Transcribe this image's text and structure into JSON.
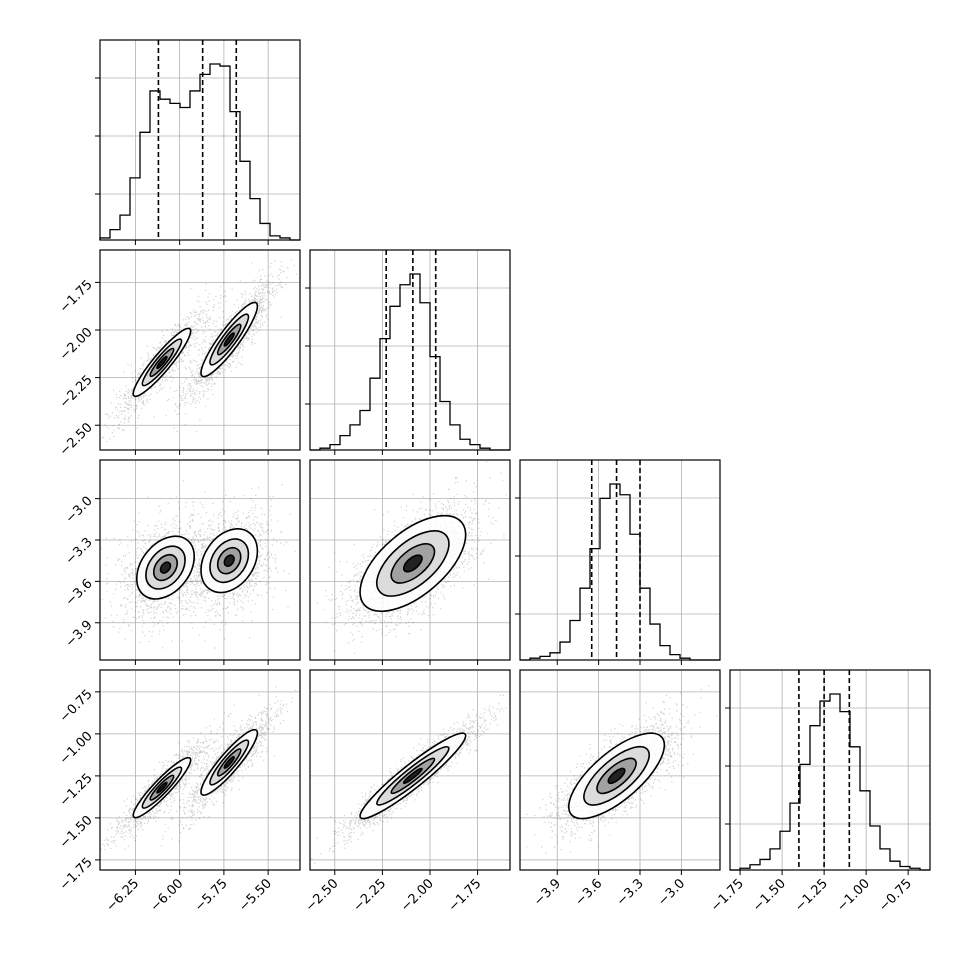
{
  "chart_data": {
    "type": "corner",
    "grid": true,
    "parameters": [
      {
        "range": [
          -6.45,
          -5.32
        ],
        "ticks": [
          -6.25,
          -6.0,
          -5.75,
          -5.5
        ],
        "tick_labels": [
          "−6.25",
          "−6.00",
          "−5.75",
          "−5.50"
        ],
        "quantiles": [
          -6.12,
          -5.87,
          -5.68
        ]
      },
      {
        "range": [
          -2.63,
          -1.58
        ],
        "ticks": [
          -2.5,
          -2.25,
          -2.0,
          -1.75
        ],
        "tick_labels": [
          "−2.50",
          "−2.25",
          "−2.00",
          "−1.75"
        ],
        "quantiles": [
          -2.23,
          -2.09,
          -1.97
        ]
      },
      {
        "range": [
          -4.17,
          -2.72
        ],
        "ticks": [
          -3.9,
          -3.6,
          -3.3,
          -3.0
        ],
        "tick_labels": [
          "−3.9",
          "−3.6",
          "−3.3",
          "−3.0"
        ],
        "quantiles": [
          -3.65,
          -3.47,
          -3.3
        ]
      },
      {
        "range": [
          -1.81,
          -0.62
        ],
        "ticks": [
          -1.75,
          -1.5,
          -1.25,
          -1.0,
          -0.75
        ],
        "tick_labels": [
          "−1.75",
          "−1.50",
          "−1.25",
          "−1.00",
          "−0.75"
        ],
        "quantiles": [
          -1.4,
          -1.25,
          -1.1
        ]
      }
    ],
    "histograms": [
      [
        1,
        5,
        12,
        30,
        52,
        72,
        68,
        66,
        64,
        72,
        80,
        85,
        84,
        62,
        38,
        20,
        8,
        2,
        1,
        0
      ],
      [
        0,
        1,
        3,
        8,
        14,
        22,
        40,
        62,
        80,
        92,
        98,
        82,
        52,
        27,
        14,
        6,
        3,
        1,
        0,
        0
      ],
      [
        0,
        1,
        2,
        4,
        10,
        22,
        40,
        62,
        90,
        98,
        92,
        70,
        40,
        20,
        8,
        3,
        1,
        0,
        0,
        0
      ],
      [
        0,
        1,
        3,
        6,
        12,
        22,
        38,
        60,
        82,
        96,
        100,
        90,
        70,
        45,
        25,
        12,
        5,
        2,
        1,
        0
      ]
    ],
    "pair_components": [
      {
        "pair": [
          1,
          0
        ],
        "components": [
          {
            "mean": [
              -6.1,
              -2.17
            ],
            "sd": [
              0.1,
              0.11
            ],
            "corr": 0.92,
            "weight": 0.45
          },
          {
            "mean": [
              -5.72,
              -2.05
            ],
            "sd": [
              0.09,
              0.11
            ],
            "corr": 0.9,
            "weight": 0.55
          }
        ]
      },
      {
        "pair": [
          2,
          0
        ],
        "components": [
          {
            "mean": [
              -6.08,
              -3.5
            ],
            "sd": [
              0.1,
              0.14
            ],
            "corr": 0.35,
            "weight": 0.45
          },
          {
            "mean": [
              -5.72,
              -3.45
            ],
            "sd": [
              0.09,
              0.13
            ],
            "corr": 0.3,
            "weight": 0.55
          }
        ]
      },
      {
        "pair": [
          2,
          1
        ],
        "components": [
          {
            "mean": [
              -2.09,
              -3.47
            ],
            "sd": [
              0.12,
              0.15
            ],
            "corr": 0.6,
            "weight": 1.0
          }
        ]
      },
      {
        "pair": [
          3,
          0
        ],
        "components": [
          {
            "mean": [
              -6.1,
              -1.32
            ],
            "sd": [
              0.1,
              0.11
            ],
            "corr": 0.92,
            "weight": 0.45
          },
          {
            "mean": [
              -5.72,
              -1.17
            ],
            "sd": [
              0.09,
              0.11
            ],
            "corr": 0.9,
            "weight": 0.55
          }
        ]
      },
      {
        "pair": [
          3,
          1
        ],
        "components": [
          {
            "mean": [
              -2.09,
              -1.25
            ],
            "sd": [
              0.12,
              0.11
            ],
            "corr": 0.94,
            "weight": 1.0
          }
        ]
      },
      {
        "pair": [
          3,
          2
        ],
        "components": [
          {
            "mean": [
              -3.47,
              -1.25
            ],
            "sd": [
              0.15,
              0.11
            ],
            "corr": 0.72,
            "weight": 1.0
          }
        ]
      }
    ]
  }
}
